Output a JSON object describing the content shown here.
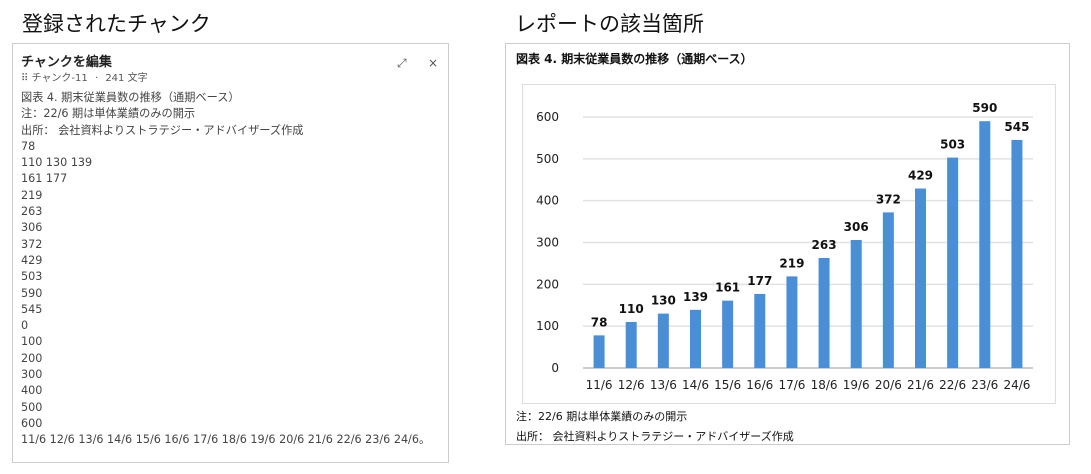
{
  "left_heading": "登録されたチャンク",
  "right_heading": "レポートの該当箇所",
  "editor": {
    "title": "チャンクを編集",
    "chunk_icon": "grid-icon",
    "chunk_id": "チャンク-11",
    "separator": "·",
    "char_count": "241 文字",
    "expand_icon": "expand-icon",
    "close_icon": "×",
    "content": "図表 4. 期末従業員数の推移（通期ベース）\n注：22/6 期は単体業績のみの開示\n出所： 会社資料よりストラテジー・アドバイザーズ作成\n78\n110 130 139\n161 177\n219\n263\n306\n372\n429\n503\n590\n545\n0\n100\n200\n300\n400\n500\n600\n11/6 12/6 13/6 14/6 15/6 16/6 17/6 18/6 19/6 20/6 21/6 22/6 23/6 24/6。"
  },
  "report": {
    "note": "注：22/6 期は単体業績のみの開示",
    "source": "出所：  会社資料よりストラテジー・アドバイザーズ作成"
  },
  "chart_data": {
    "type": "bar",
    "title": "図表 4.  期末従業員数の推移（通期ベース）",
    "categories": [
      "11/6",
      "12/6",
      "13/6",
      "14/6",
      "15/6",
      "16/6",
      "17/6",
      "18/6",
      "19/6",
      "20/6",
      "21/6",
      "22/6",
      "23/6",
      "24/6"
    ],
    "values": [
      78,
      110,
      130,
      139,
      161,
      177,
      219,
      263,
      306,
      372,
      429,
      503,
      590,
      545
    ],
    "yticks": [
      0,
      100,
      200,
      300,
      400,
      500,
      600
    ],
    "ylim": [
      0,
      600
    ],
    "xlabel": "",
    "ylabel": "",
    "grid": true,
    "bar_color": "#4a8fd6"
  }
}
